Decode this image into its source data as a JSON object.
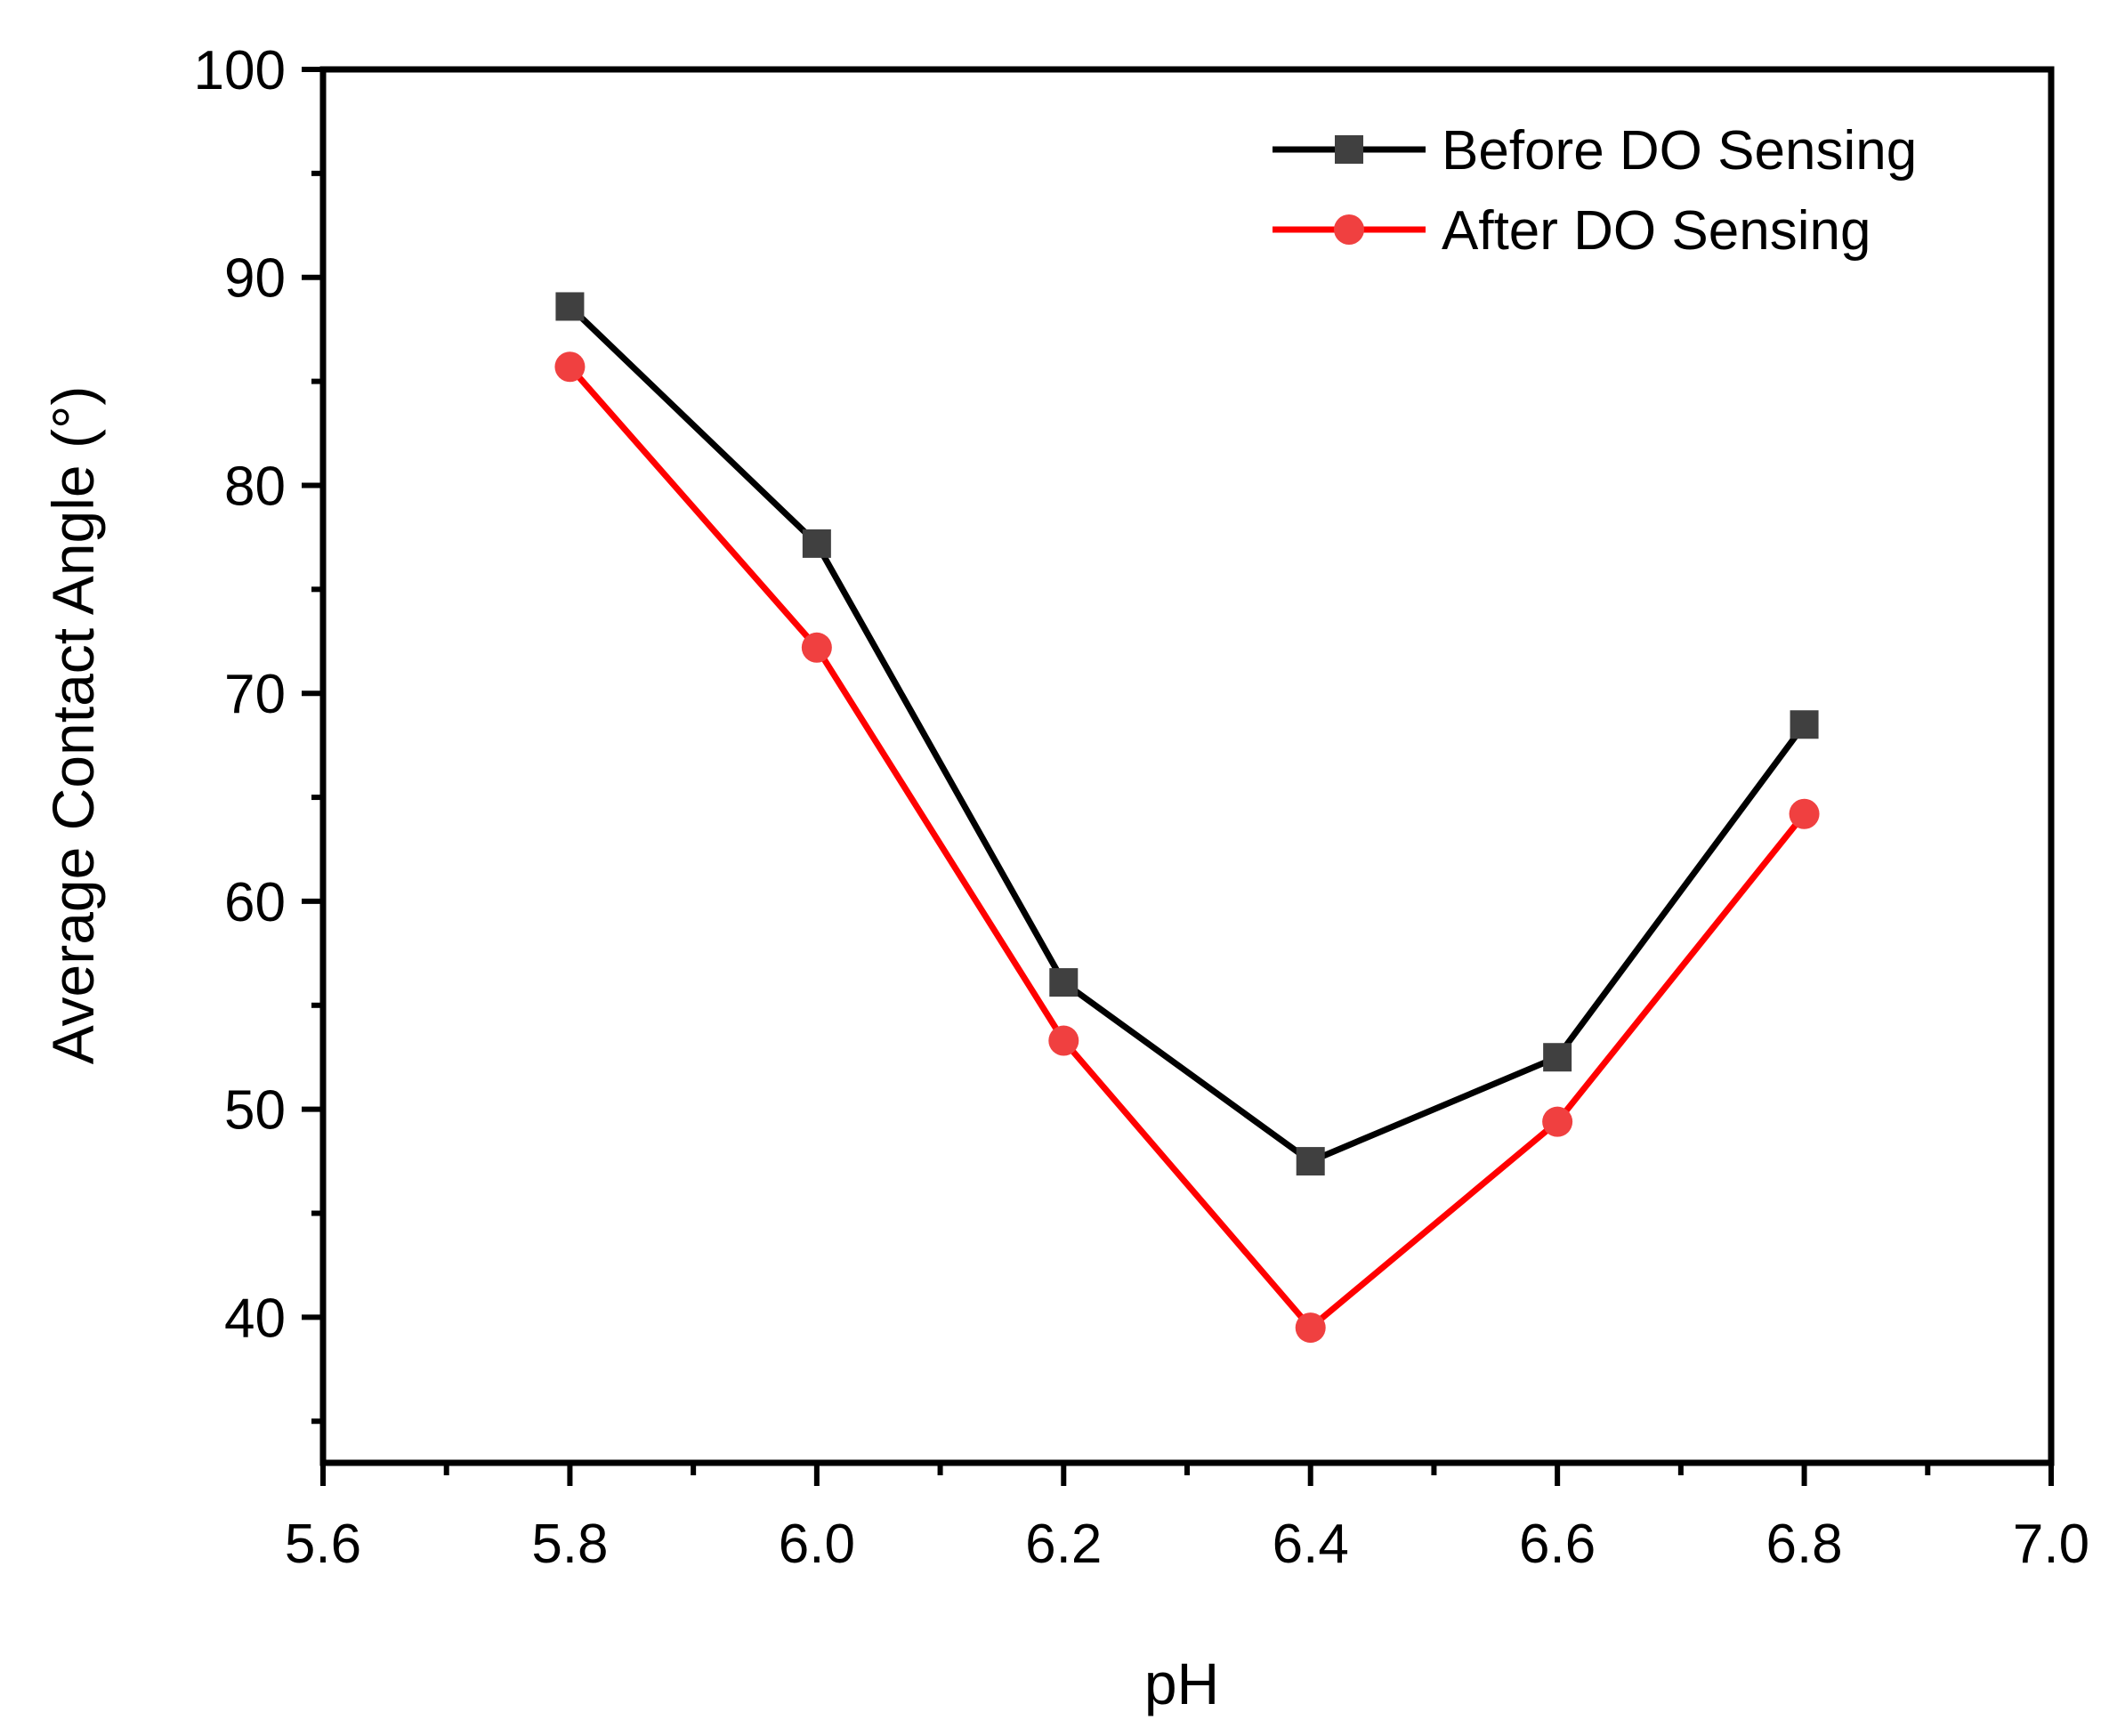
{
  "chart_data": {
    "type": "line",
    "title": "",
    "xlabel": "pH",
    "ylabel": "Average Contact Angle (°)",
    "xlim": [
      5.6,
      7.0
    ],
    "ylim": [
      33,
      100
    ],
    "x_ticks": [
      5.6,
      5.8,
      6.0,
      6.2,
      6.4,
      6.6,
      6.8,
      7.0
    ],
    "x_tick_labels": [
      "5.6",
      "5.8",
      "6.0",
      "6.2",
      "6.4",
      "6.6",
      "6.8",
      "7.0"
    ],
    "y_ticks": [
      40,
      50,
      60,
      70,
      80,
      90,
      100
    ],
    "y_tick_labels": [
      "40",
      "50",
      "60",
      "70",
      "80",
      "90",
      "100"
    ],
    "grid": false,
    "legend_position": "top-right",
    "series": [
      {
        "name": "Before DO Sensing",
        "color": "#000000",
        "marker_color": "#404040",
        "marker": "square",
        "x": [
          5.8,
          6.0,
          6.2,
          6.4,
          6.6,
          6.8
        ],
        "y": [
          88.6,
          77.2,
          56.1,
          47.5,
          52.5,
          68.5
        ]
      },
      {
        "name": "After DO Sensing",
        "color": "#ff0000",
        "marker_color": "#f04040",
        "marker": "circle",
        "x": [
          5.8,
          6.0,
          6.2,
          6.4,
          6.6,
          6.8
        ],
        "y": [
          85.7,
          72.2,
          53.3,
          39.5,
          49.4,
          64.2
        ]
      }
    ]
  }
}
